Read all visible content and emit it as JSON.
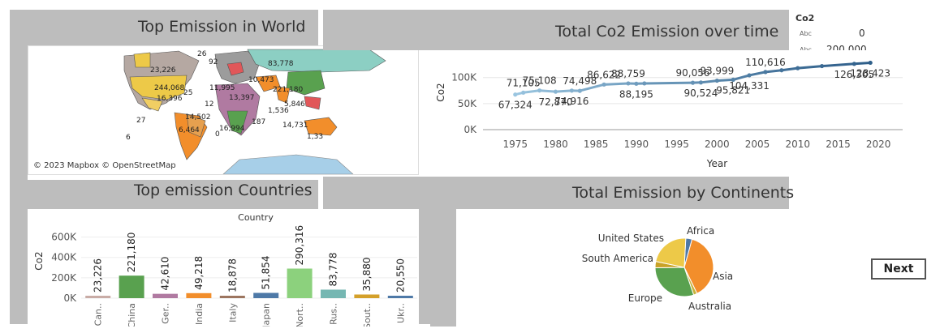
{
  "titles": {
    "map": "Top Emission in World",
    "line": "Total Co2 Emission over time",
    "bar": "Top emission Countries",
    "pie": "Total Emission by Continents"
  },
  "map": {
    "attribution": "© 2023 Mapbox © OpenStreetMap",
    "labels": [
      "26",
      "92",
      "83,778",
      "23,226",
      "244,068",
      "25",
      "11,995",
      "10,473",
      "16,396",
      "221,180",
      "13,397",
      "12",
      "14,502",
      "27",
      "6,464",
      "16,994",
      "187",
      "14,731",
      "6",
      "0",
      "1,33",
      "1,536",
      "5,846"
    ]
  },
  "legend": {
    "title": "Co2",
    "row1_tag": "Abc",
    "row1_value": "0",
    "row2_tag": "Abc",
    "row2_value": "200,000"
  },
  "button": {
    "next": "Next"
  },
  "colors": {
    "panel_gray": "#bdbdbd",
    "line_light": "#9ac5e0",
    "line_dark": "#2f5f8a",
    "bar_colors": [
      "#c9aca6",
      "#59a14f",
      "#b07aa1",
      "#f28e2b",
      "#9c755f",
      "#4e79a7",
      "#8cd17d",
      "#76b7b2",
      "#d4a02a",
      "#4e79a7"
    ],
    "pie_colors": {
      "Africa": "#4e79a7",
      "Asia": "#f28e2b",
      "Australia": "#c7b33c",
      "Europe": "#59a14f",
      "South America": "#c9a227",
      "United States": "#edc948"
    }
  },
  "chart_data": [
    {
      "type": "line",
      "title": "Total Co2 Emission over time",
      "xlabel": "Year",
      "ylabel": "Co2",
      "x_ticks": [
        "1975",
        "1980",
        "1985",
        "1990",
        "1995",
        "2000",
        "2005",
        "2010",
        "2015",
        "2020"
      ],
      "y_ticks": [
        "0K",
        "50K",
        "100K"
      ],
      "ylim": [
        0,
        140000
      ],
      "xlim": [
        1971,
        2023
      ],
      "series": [
        {
          "points": [
            [
              1975,
              67324
            ],
            [
              1976,
              71105
            ],
            [
              1978,
              75108
            ],
            [
              1980,
              72870
            ],
            [
              1982,
              74916
            ],
            [
              1983,
              74498
            ],
            [
              1986,
              86622
            ],
            [
              1989,
              88759
            ],
            [
              1990,
              88195
            ],
            [
              1991,
              88759
            ],
            [
              1997,
              90056
            ],
            [
              1998,
              90524
            ],
            [
              2000,
              93999
            ],
            [
              2002,
              95821
            ],
            [
              2004,
              104331
            ],
            [
              2006,
              110616
            ],
            [
              2008,
              114000
            ],
            [
              2010,
              118000
            ],
            [
              2013,
              122000
            ],
            [
              2017,
              126305
            ],
            [
              2019,
              128423
            ]
          ],
          "labels": [
            {
              "x": 1975,
              "y": 67324,
              "text": "67,324",
              "pos": "below"
            },
            {
              "x": 1976,
              "y": 71105,
              "text": "71,105",
              "pos": "above"
            },
            {
              "x": 1978,
              "y": 75108,
              "text": "75,108",
              "pos": "above"
            },
            {
              "x": 1980,
              "y": 72870,
              "text": "72,870",
              "pos": "below"
            },
            {
              "x": 1982,
              "y": 74916,
              "text": "74,916",
              "pos": "below"
            },
            {
              "x": 1983,
              "y": 74498,
              "text": "74,498",
              "pos": "above"
            },
            {
              "x": 1986,
              "y": 86622,
              "text": "86,622",
              "pos": "above"
            },
            {
              "x": 1989,
              "y": 88759,
              "text": "88,759",
              "pos": "above"
            },
            {
              "x": 1990,
              "y": 88195,
              "text": "88,195",
              "pos": "below"
            },
            {
              "x": 1997,
              "y": 90056,
              "text": "90,056",
              "pos": "above"
            },
            {
              "x": 1998,
              "y": 90524,
              "text": "90,524",
              "pos": "below"
            },
            {
              "x": 2000,
              "y": 93999,
              "text": "93,999",
              "pos": "above"
            },
            {
              "x": 2002,
              "y": 95821,
              "text": "95,821",
              "pos": "below"
            },
            {
              "x": 2004,
              "y": 104331,
              "text": "104,331",
              "pos": "below"
            },
            {
              "x": 2006,
              "y": 110616,
              "text": "110,616",
              "pos": "above"
            },
            {
              "x": 2017,
              "y": 126305,
              "text": "126,305",
              "pos": "below"
            },
            {
              "x": 2019,
              "y": 128423,
              "text": "128,423",
              "pos": "below"
            }
          ]
        }
      ]
    },
    {
      "type": "bar",
      "title": "Country",
      "ylabel": "Co2",
      "y_ticks": [
        "0K",
        "200K",
        "400K",
        "600K"
      ],
      "ylim": [
        0,
        700000
      ],
      "categories": [
        "Can..",
        "China",
        "Ger..",
        "India",
        "Italy",
        "Japan",
        "Nort..",
        "Rus..",
        "Sout..",
        "Ukr.."
      ],
      "values": [
        23226,
        221180,
        42610,
        49218,
        18878,
        51854,
        290316,
        83778,
        35880,
        20550
      ],
      "value_labels": [
        "23,226",
        "221,180",
        "42,610",
        "49,218",
        "18,878",
        "51,854",
        "290,316",
        "83,778",
        "35,880",
        "20,550"
      ]
    },
    {
      "type": "pie",
      "categories": [
        "Africa",
        "Asia",
        "Australia",
        "Europe",
        "South America",
        "United States"
      ],
      "values": [
        3.5,
        38.5,
        2.0,
        30.0,
        3.5,
        22.5
      ]
    }
  ]
}
